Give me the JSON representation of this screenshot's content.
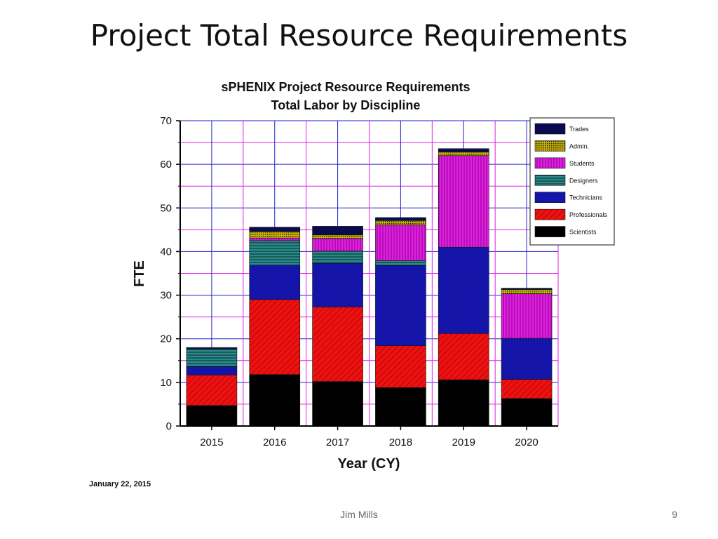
{
  "slide": {
    "title": "Project Total Resource Requirements",
    "date": "January 22, 2015",
    "author": "Jim Mills",
    "page_number": "9"
  },
  "chart_data": {
    "type": "bar",
    "stacked": true,
    "title": "sPHENIX Project Resource Requirements",
    "subtitle": "Total Labor by Discipline",
    "xlabel": "Year (CY)",
    "ylabel": "FTE",
    "categories": [
      "2015",
      "2016",
      "2017",
      "2018",
      "2019",
      "2020"
    ],
    "ylim": [
      0,
      70
    ],
    "yticks": [
      0,
      10,
      20,
      30,
      40,
      50,
      60,
      70
    ],
    "grid": true,
    "legend_position": "top-right",
    "series": [
      {
        "name": "Scientists",
        "values": [
          4.7,
          11.8,
          10.2,
          8.8,
          10.6,
          6.3
        ],
        "color": "#000000",
        "pattern": "solid"
      },
      {
        "name": "Professionals",
        "values": [
          7.0,
          17.2,
          17.1,
          9.6,
          10.6,
          4.4
        ],
        "color": "#ee1111",
        "pattern": "diagonal"
      },
      {
        "name": "Technicians",
        "values": [
          1.9,
          7.9,
          10.0,
          18.4,
          19.8,
          9.4
        ],
        "color": "#1a1ac8",
        "pattern": "crosshatch"
      },
      {
        "name": "Designers",
        "values": [
          4.1,
          5.6,
          2.8,
          1.1,
          0.0,
          0.0
        ],
        "color": "#2a8a8a",
        "pattern": "horizontal"
      },
      {
        "name": "Students",
        "values": [
          0.0,
          0.6,
          2.9,
          8.2,
          21.0,
          10.2
        ],
        "color": "#e020e0",
        "pattern": "vertical"
      },
      {
        "name": "Admin.",
        "values": [
          0.0,
          1.5,
          0.8,
          1.0,
          0.8,
          1.0
        ],
        "color": "#c9b400",
        "pattern": "dots"
      },
      {
        "name": "Trades",
        "values": [
          0.3,
          1.0,
          2.0,
          0.7,
          0.8,
          0.3
        ],
        "color": "#0a0a50",
        "pattern": "solid"
      }
    ]
  }
}
